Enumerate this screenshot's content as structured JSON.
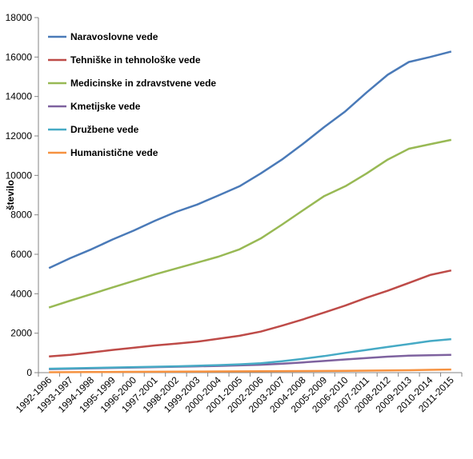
{
  "chart_data": {
    "type": "line",
    "title": "",
    "xlabel": "",
    "ylabel": "število",
    "ylim": [
      0,
      18000
    ],
    "yticks": [
      0,
      2000,
      4000,
      6000,
      8000,
      10000,
      12000,
      14000,
      16000,
      18000
    ],
    "grid": false,
    "legend_position": "top-left",
    "categories": [
      "1992-1996",
      "1993-1997",
      "1994-1998",
      "1995-1999",
      "1996-2000",
      "1997-2001",
      "1998-2002",
      "1999-2003",
      "2000-2004",
      "2001-2005",
      "2002-2006",
      "2003-2007",
      "2004-2008",
      "2005-2009",
      "2006-2010",
      "2007-2011",
      "2008-2012",
      "2009-2013",
      "2010-2014",
      "2011-2015"
    ],
    "series": [
      {
        "name": "Naravoslovne vede",
        "color": "#4a7ab8",
        "values": [
          5300,
          5800,
          6250,
          6750,
          7200,
          7700,
          8150,
          8520,
          8980,
          9450,
          10100,
          10800,
          11600,
          12450,
          13250,
          14200,
          15100,
          15750,
          16000,
          16280
        ]
      },
      {
        "name": "Tehniške in tehnološke vede",
        "color": "#be4b48",
        "values": [
          820,
          900,
          1020,
          1150,
          1260,
          1380,
          1470,
          1570,
          1720,
          1870,
          2080,
          2380,
          2700,
          3050,
          3400,
          3800,
          4150,
          4550,
          4950,
          5180
        ]
      },
      {
        "name": "Medicinske in zdravstvene vede",
        "color": "#98b954",
        "values": [
          3300,
          3650,
          3980,
          4320,
          4650,
          4980,
          5280,
          5580,
          5880,
          6250,
          6800,
          7500,
          8230,
          8950,
          9450,
          10100,
          10800,
          11350,
          11580,
          11800
        ]
      },
      {
        "name": "Kmetijske vede",
        "color": "#7e629f",
        "values": [
          180,
          200,
          220,
          240,
          260,
          280,
          300,
          320,
          340,
          370,
          400,
          450,
          520,
          590,
          670,
          740,
          810,
          860,
          880,
          900
        ]
      },
      {
        "name": "Družbene vede",
        "color": "#46aac5",
        "values": [
          200,
          220,
          240,
          260,
          280,
          300,
          320,
          350,
          380,
          420,
          480,
          580,
          700,
          840,
          1000,
          1150,
          1300,
          1450,
          1600,
          1700
        ]
      },
      {
        "name": "Humanistične vede",
        "color": "#f69240",
        "values": [
          20,
          25,
          30,
          35,
          40,
          45,
          50,
          55,
          60,
          65,
          70,
          75,
          80,
          85,
          90,
          100,
          110,
          120,
          140,
          160
        ]
      }
    ]
  }
}
